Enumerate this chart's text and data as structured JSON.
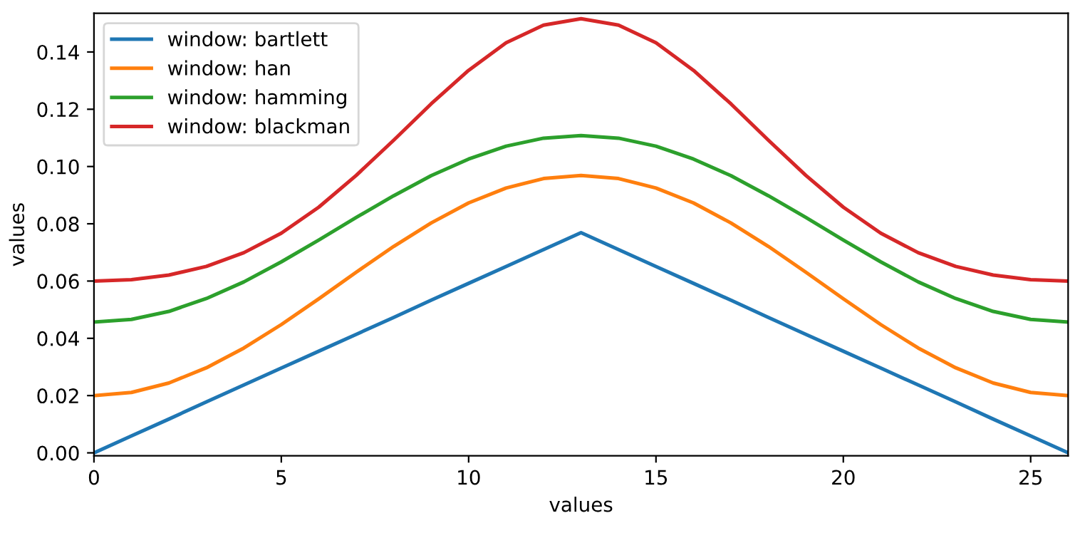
{
  "chart_data": {
    "type": "line",
    "xlabel": "values",
    "ylabel": "values",
    "x": [
      0,
      1,
      2,
      3,
      4,
      5,
      6,
      7,
      8,
      9,
      10,
      11,
      12,
      13,
      14,
      15,
      16,
      17,
      18,
      19,
      20,
      21,
      22,
      23,
      24,
      25,
      26
    ],
    "series": [
      {
        "name": "window: bartlett",
        "color": "#1f77b4",
        "values": [
          0,
          0.0059,
          0.0118,
          0.0178,
          0.0237,
          0.0296,
          0.0355,
          0.0414,
          0.0473,
          0.0533,
          0.0592,
          0.0651,
          0.071,
          0.0769,
          0.071,
          0.0651,
          0.0592,
          0.0533,
          0.0473,
          0.0414,
          0.0355,
          0.0296,
          0.0237,
          0.0178,
          0.0118,
          0.0059,
          0
        ]
      },
      {
        "name": "window: han",
        "color": "#ff7f0e",
        "values": [
          0.02,
          0.0211,
          0.0244,
          0.0297,
          0.0366,
          0.0448,
          0.0538,
          0.0631,
          0.0721,
          0.0803,
          0.0873,
          0.0925,
          0.0958,
          0.0969,
          0.0958,
          0.0925,
          0.0873,
          0.0803,
          0.0721,
          0.0631,
          0.0538,
          0.0448,
          0.0366,
          0.0297,
          0.0244,
          0.0211,
          0.02
        ]
      },
      {
        "name": "window: hamming",
        "color": "#2ca02c",
        "values": [
          0.0457,
          0.0466,
          0.0494,
          0.0539,
          0.0597,
          0.0667,
          0.0743,
          0.0822,
          0.0898,
          0.0968,
          0.1026,
          0.1071,
          0.1099,
          0.1108,
          0.1099,
          0.1071,
          0.1026,
          0.0968,
          0.0898,
          0.0822,
          0.0743,
          0.0667,
          0.0597,
          0.0539,
          0.0494,
          0.0466,
          0.0457
        ]
      },
      {
        "name": "window: blackman",
        "color": "#d62728",
        "values": [
          0.06,
          0.0605,
          0.0621,
          0.0651,
          0.0699,
          0.0767,
          0.0858,
          0.0969,
          0.1092,
          0.1219,
          0.1336,
          0.1432,
          0.1494,
          0.1516,
          0.1494,
          0.1432,
          0.1336,
          0.1219,
          0.1092,
          0.0969,
          0.0858,
          0.0767,
          0.0699,
          0.0651,
          0.0621,
          0.0605,
          0.06
        ]
      }
    ],
    "xlim": [
      0,
      26
    ],
    "xticks": [
      0,
      5,
      10,
      15,
      20,
      25
    ],
    "ylim": [
      -0.001,
      0.1535
    ],
    "yticks": [
      {
        "value": 0,
        "label": "0.00"
      },
      {
        "value": 0.02,
        "label": "0.02"
      },
      {
        "value": 0.04,
        "label": "0.04"
      },
      {
        "value": 0.06,
        "label": "0.06"
      },
      {
        "value": 0.08,
        "label": "0.08"
      },
      {
        "value": 0.1,
        "label": "0.10"
      },
      {
        "value": 0.12,
        "label": "0.12"
      },
      {
        "value": 0.14,
        "label": "0.14"
      }
    ],
    "legend": "top left",
    "grid": false,
    "marker": "none",
    "line_style": "solid"
  }
}
